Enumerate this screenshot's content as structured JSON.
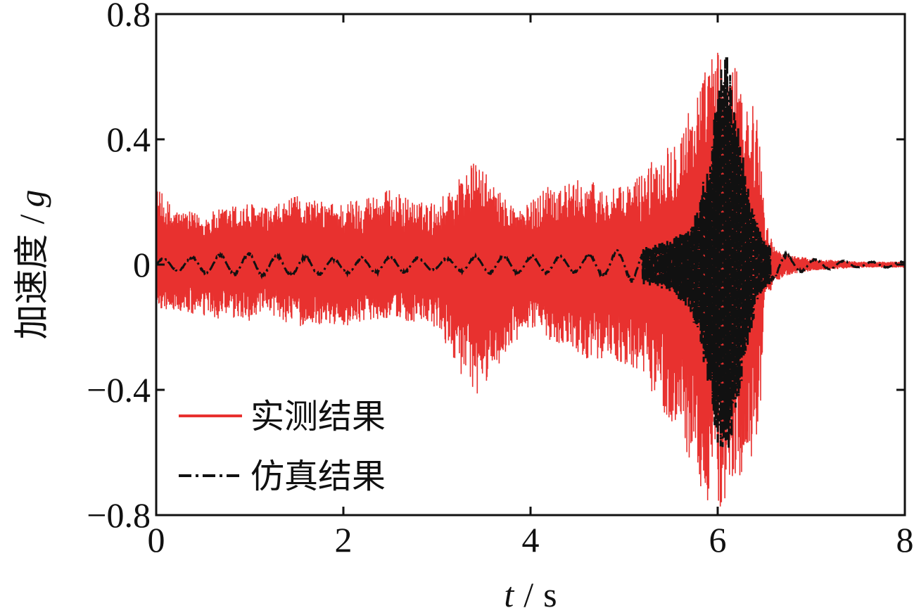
{
  "chart_data": {
    "type": "line",
    "xlabel_var": "t",
    "xlabel_unit": "s",
    "ylabel_text": "加速度",
    "ylabel_var": "g",
    "xlim": [
      0,
      8
    ],
    "ylim": [
      -0.8,
      0.8
    ],
    "x_ticks": [
      0,
      2,
      4,
      6,
      8
    ],
    "x_tick_labels": [
      "0",
      "2",
      "4",
      "6",
      "8"
    ],
    "y_ticks": [
      -0.8,
      -0.4,
      0,
      0.4,
      0.8
    ],
    "y_tick_labels": [
      "−0.8",
      "−0.4",
      "0",
      "0.4",
      "0.8"
    ],
    "grid": false,
    "legend_position": "bottom-left",
    "series": [
      {
        "name": "实测结果",
        "color": "#e8312f",
        "style": "solid",
        "envelope": {
          "x": [
            0.0,
            0.2,
            0.5,
            0.8,
            1.0,
            1.2,
            1.5,
            1.8,
            2.0,
            2.2,
            2.5,
            2.8,
            3.0,
            3.2,
            3.4,
            3.5,
            3.7,
            3.9,
            4.0,
            4.2,
            4.4,
            4.6,
            4.8,
            5.0,
            5.2,
            5.4,
            5.6,
            5.8,
            5.9,
            6.0,
            6.1,
            6.2,
            6.3,
            6.4,
            6.45,
            6.5,
            6.6,
            6.7,
            6.8,
            7.0,
            7.5,
            8.0
          ],
          "upper": [
            0.25,
            0.18,
            0.16,
            0.19,
            0.2,
            0.18,
            0.22,
            0.2,
            0.2,
            0.22,
            0.24,
            0.2,
            0.2,
            0.27,
            0.33,
            0.3,
            0.22,
            0.18,
            0.2,
            0.27,
            0.26,
            0.28,
            0.24,
            0.25,
            0.3,
            0.37,
            0.44,
            0.58,
            0.65,
            0.7,
            0.68,
            0.62,
            0.55,
            0.5,
            0.45,
            0.15,
            0.06,
            0.04,
            0.03,
            0.02,
            0.01,
            0.01
          ],
          "lower": [
            -0.14,
            -0.15,
            -0.17,
            -0.18,
            -0.18,
            -0.16,
            -0.2,
            -0.19,
            -0.2,
            -0.18,
            -0.17,
            -0.19,
            -0.21,
            -0.31,
            -0.45,
            -0.39,
            -0.3,
            -0.24,
            -0.2,
            -0.24,
            -0.26,
            -0.3,
            -0.3,
            -0.32,
            -0.36,
            -0.46,
            -0.56,
            -0.7,
            -0.78,
            -0.8,
            -0.76,
            -0.7,
            -0.66,
            -0.6,
            -0.55,
            -0.14,
            -0.06,
            -0.04,
            -0.03,
            -0.02,
            -0.01,
            -0.01
          ]
        }
      },
      {
        "name": "仿真结果",
        "color": "#111111",
        "style": "dash-dot",
        "envelope": {
          "x": [
            0.0,
            0.5,
            1.0,
            1.5,
            2.0,
            2.5,
            3.0,
            3.5,
            4.0,
            4.5,
            5.0,
            5.3,
            5.5,
            5.7,
            5.8,
            5.9,
            6.0,
            6.05,
            6.1,
            6.2,
            6.3,
            6.4,
            6.5,
            6.6,
            6.8,
            7.0,
            7.5,
            8.0
          ],
          "upper": [
            0.02,
            0.03,
            0.04,
            0.03,
            0.02,
            0.03,
            0.02,
            0.03,
            0.03,
            0.03,
            0.05,
            0.06,
            0.08,
            0.12,
            0.2,
            0.35,
            0.55,
            0.66,
            0.7,
            0.5,
            0.3,
            0.15,
            0.08,
            0.05,
            0.03,
            0.02,
            0.01,
            0.01
          ],
          "lower": [
            -0.02,
            -0.03,
            -0.04,
            -0.04,
            -0.03,
            -0.03,
            -0.02,
            -0.03,
            -0.03,
            -0.03,
            -0.05,
            -0.07,
            -0.09,
            -0.15,
            -0.25,
            -0.4,
            -0.58,
            -0.65,
            -0.62,
            -0.48,
            -0.3,
            -0.15,
            -0.08,
            -0.05,
            -0.03,
            -0.02,
            -0.01,
            -0.01
          ]
        }
      }
    ]
  }
}
